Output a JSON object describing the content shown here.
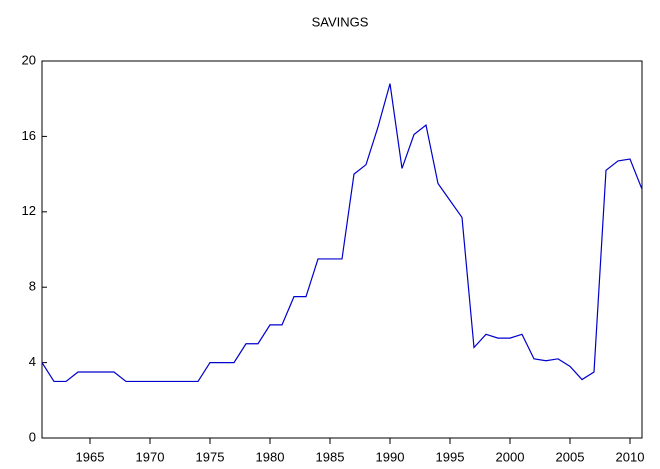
{
  "chart_data": {
    "type": "line",
    "title": "SAVINGS",
    "x": [
      1961,
      1962,
      1963,
      1964,
      1965,
      1966,
      1967,
      1968,
      1969,
      1970,
      1971,
      1972,
      1973,
      1974,
      1975,
      1976,
      1977,
      1978,
      1979,
      1980,
      1981,
      1982,
      1983,
      1984,
      1985,
      1986,
      1987,
      1988,
      1989,
      1990,
      1991,
      1992,
      1993,
      1994,
      1995,
      1996,
      1997,
      1998,
      1999,
      2000,
      2001,
      2002,
      2003,
      2004,
      2005,
      2006,
      2007,
      2008,
      2009,
      2010,
      2011
    ],
    "series": [
      {
        "name": "SAVINGS",
        "color": "#0000cc",
        "values": [
          4.0,
          3.0,
          3.0,
          3.5,
          3.5,
          3.5,
          3.5,
          3.0,
          3.0,
          3.0,
          3.0,
          3.0,
          3.0,
          3.0,
          4.0,
          4.0,
          4.0,
          5.0,
          5.0,
          6.0,
          6.0,
          7.5,
          7.5,
          9.5,
          9.5,
          9.5,
          14.0,
          14.5,
          16.5,
          18.8,
          14.3,
          16.1,
          16.6,
          13.5,
          12.6,
          11.7,
          4.8,
          5.5,
          5.3,
          5.3,
          5.5,
          4.2,
          4.1,
          4.2,
          3.8,
          3.1,
          3.5,
          14.2,
          14.7,
          14.8,
          13.2
        ]
      }
    ],
    "xlim": [
      1961,
      2011
    ],
    "xticks": [
      1965,
      1970,
      1975,
      1980,
      1985,
      1990,
      1995,
      2000,
      2005,
      2010
    ],
    "ylim": [
      0,
      20
    ],
    "yticks": [
      0,
      4,
      8,
      12,
      16,
      20
    ]
  }
}
